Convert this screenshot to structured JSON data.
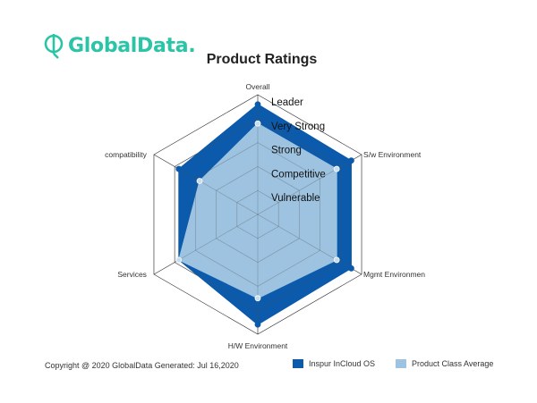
{
  "brand": {
    "name": "GlobalData.",
    "color": "#2bc4a6"
  },
  "colors": {
    "primary": "#0b5aab",
    "average": "#9dc3e0",
    "grid": "#333333"
  },
  "chart_data": {
    "type": "radar",
    "title": "Product Ratings",
    "axes": [
      "Overall",
      "S/w Environment",
      "Mgmt Environmen",
      "H/W Environment",
      "Services",
      "compatibility"
    ],
    "levels": [
      "Vulnerable",
      "Competitive",
      "Strong",
      "Very Strong",
      "Leader"
    ],
    "range": [
      0,
      5
    ],
    "series": [
      {
        "name": "Inspur InCloud OS",
        "values": [
          4.6,
          4.5,
          4.5,
          4.6,
          3.8,
          3.8
        ],
        "color": "#0b5aab"
      },
      {
        "name": "Product Class Average",
        "values": [
          3.8,
          3.8,
          3.8,
          3.5,
          3.8,
          2.8
        ],
        "color": "#9dc3e0"
      }
    ],
    "legend_position": "bottom-right"
  },
  "footer": {
    "copyright": "Copyright @ 2020 GlobalData Generated: Jul 16,2020"
  }
}
